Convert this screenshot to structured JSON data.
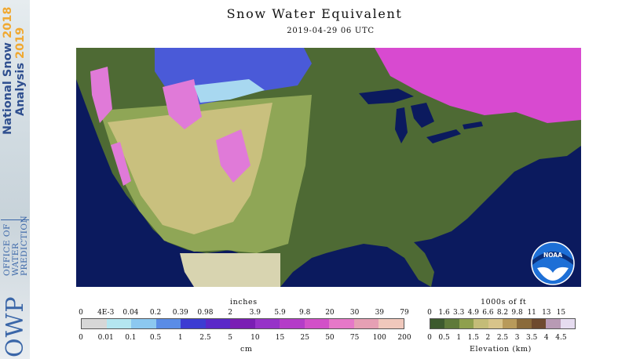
{
  "sidebar": {
    "nsa_line1_text": "National Snow ",
    "nsa_line1_year": "2018",
    "nsa_line2_text": "Analysis ",
    "nsa_line2_year": "2019",
    "owp_abbr": "OWP",
    "owp_name_1": "OFFICE OF",
    "owp_name_2": "WATER",
    "owp_name_3": "PREDICTION"
  },
  "header": {
    "title": "Snow Water Equivalent",
    "timestamp": "2019-04-29 06 UTC"
  },
  "logo": {
    "text": "NOAA"
  },
  "swe_legend": {
    "top_label": "inches",
    "bottom_label": "cm",
    "inch_ticks": [
      "0",
      "4E-3",
      "0.04",
      "0.2",
      "0.39",
      "0.98",
      "2",
      "3.9",
      "5.9",
      "9.8",
      "20",
      "30",
      "39",
      "79"
    ],
    "cm_ticks": [
      "0",
      "0.01",
      "0.1",
      "0.5",
      "1",
      "2.5",
      "5",
      "10",
      "15",
      "25",
      "50",
      "75",
      "100",
      "200"
    ],
    "colors": [
      "#d7d7d7",
      "#b4e6f0",
      "#8cc8f0",
      "#5a8ce6",
      "#3c3cd2",
      "#5a28c8",
      "#7a1eb4",
      "#9632c8",
      "#b43cc8",
      "#d250c8",
      "#e678c8",
      "#e6a0b4",
      "#f0c8bc"
    ]
  },
  "elevation_legend": {
    "top_label": "1000s of ft",
    "bottom_label": "Elevation (km)",
    "ft_ticks": [
      "0",
      "1.6",
      "3.3",
      "4.9",
      "6.6",
      "8.2",
      "9.8",
      "11",
      "13",
      "15"
    ],
    "km_ticks": [
      "0",
      "0.5",
      "1",
      "1.5",
      "2",
      "2.5",
      "3",
      "3.5",
      "4",
      "4.5"
    ],
    "colors": [
      "#3d5a2e",
      "#5f7a3a",
      "#8fa04e",
      "#c4bc78",
      "#d8c48a",
      "#b89a5a",
      "#8a6a3a",
      "#6e4a2e",
      "#b89ab4",
      "#e6dcf0"
    ]
  },
  "map_colors": {
    "ocean": "#0b1a5e",
    "lowland": "#4e6a34",
    "plains": "#8fa656",
    "highland": "#c9c07e",
    "snow_light": "#a8d8f0",
    "snow_blue": "#4a5ad8",
    "snow_magenta": "#d84ad0",
    "snow_pink": "#e07ad8",
    "mask": "#d8d4b0",
    "lakes": "#0b1a5e"
  }
}
